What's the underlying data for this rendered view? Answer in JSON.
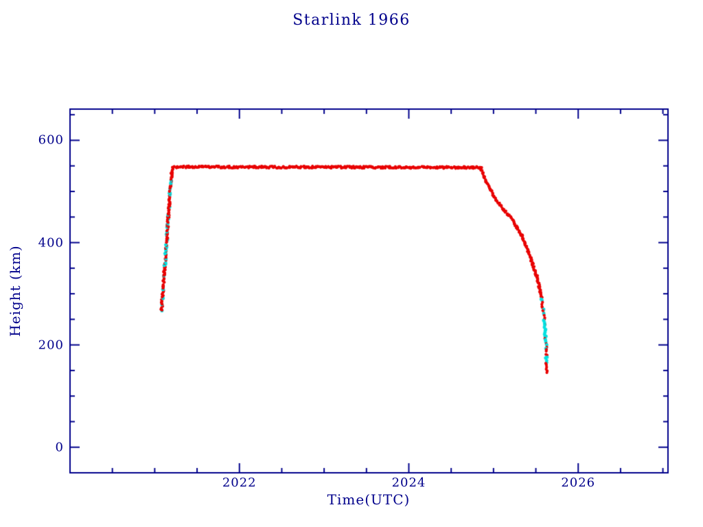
{
  "page": {
    "background_color": "#ffffff",
    "accent_color": "#00008b"
  },
  "chart_data": {
    "type": "scatter",
    "title": "Starlink 1966",
    "xlabel": "Time(UTC)",
    "ylabel": "Height (km)",
    "xlim": [
      2020,
      2027.06
    ],
    "ylim": [
      -50,
      661
    ],
    "grid": false,
    "legend": null,
    "axis_color": "#00008b",
    "x_ticks": {
      "major": [
        2022,
        2024,
        2026
      ],
      "labels": [
        "2022",
        "2024",
        "2026"
      ],
      "minor_step": 0.5,
      "minor_range": [
        2020.5,
        2027
      ]
    },
    "y_ticks": {
      "major": [
        0,
        200,
        400,
        600
      ],
      "labels": [
        "0",
        "200",
        "400",
        "600"
      ],
      "minor_step": 50,
      "minor_range": [
        -50,
        650
      ]
    },
    "series": [
      {
        "name": "height-red",
        "marker": "asterisk",
        "color": "#e80000",
        "size": 2.1
      },
      {
        "name": "height-cyan",
        "marker": "asterisk",
        "color": "#00e0e0",
        "size": 2.6
      }
    ],
    "segments": [
      {
        "phase": "launch-ascent",
        "cyan_fraction": 0.22,
        "points": [
          [
            2021.08,
            267
          ],
          [
            2021.095,
            300
          ],
          [
            2021.115,
            345
          ],
          [
            2021.135,
            390
          ],
          [
            2021.155,
            437
          ],
          [
            2021.175,
            480
          ],
          [
            2021.19,
            515
          ],
          [
            2021.205,
            543
          ],
          [
            2021.215,
            548
          ]
        ]
      },
      {
        "phase": "operational-plateau",
        "cyan_fraction": 0,
        "points": [
          [
            2021.215,
            548
          ],
          [
            2024.85,
            547
          ]
        ]
      },
      {
        "phase": "deorbit-decay",
        "cyan_fraction": 0,
        "points": [
          [
            2024.85,
            547
          ],
          [
            2024.87,
            536
          ],
          [
            2024.94,
            512
          ],
          [
            2025.02,
            486
          ],
          [
            2025.1,
            468
          ],
          [
            2025.21,
            448
          ],
          [
            2025.33,
            414
          ],
          [
            2025.43,
            374
          ],
          [
            2025.51,
            334
          ],
          [
            2025.57,
            292
          ]
        ]
      },
      {
        "phase": "reentry-tail",
        "cyan_fraction": 0.45,
        "points": [
          [
            2025.57,
            292
          ],
          [
            2025.595,
            258
          ],
          [
            2025.61,
            228
          ],
          [
            2025.62,
            196
          ],
          [
            2025.625,
            170
          ],
          [
            2025.63,
            146
          ]
        ]
      }
    ]
  }
}
